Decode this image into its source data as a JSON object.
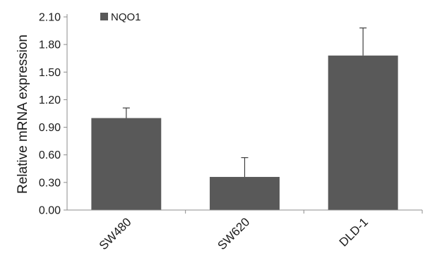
{
  "chart_data": {
    "type": "bar",
    "title": "",
    "xlabel": "",
    "ylabel": "Relative  mRNA expression",
    "ylim": [
      0,
      2.1
    ],
    "yticks": [
      "0.00",
      "0.30",
      "0.60",
      "0.90",
      "1.20",
      "1.50",
      "1.80",
      "2.10"
    ],
    "categories": [
      "SW480",
      "SW620",
      "DLD-1"
    ],
    "series": [
      {
        "name": "NQO1",
        "values": [
          1.0,
          0.36,
          1.68
        ],
        "error_plus": [
          0.11,
          0.21,
          0.3
        ],
        "color": "#595959"
      }
    ],
    "legend": "top-left",
    "grid": false
  }
}
